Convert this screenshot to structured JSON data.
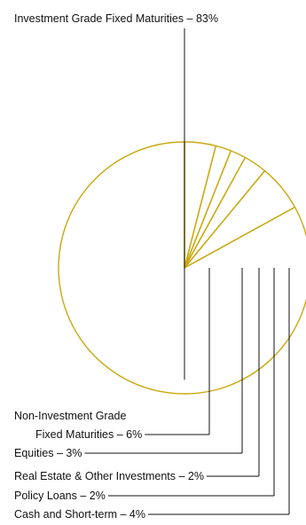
{
  "chart_data": {
    "type": "pie",
    "slices": [
      {
        "label": "Investment Grade Fixed Maturities",
        "value_label": "83%",
        "value": 83
      },
      {
        "label_lines": [
          "Non-Investment Grade",
          "Fixed Maturities"
        ],
        "value_label": "6%",
        "value": 6
      },
      {
        "label": "Equities",
        "value_label": "3%",
        "value": 3
      },
      {
        "label": "Real Estate & Other Investments",
        "value_label": "2%",
        "value": 2
      },
      {
        "label": "Policy Loans",
        "value_label": "2%",
        "value": 2
      },
      {
        "label": "Cash and Short-term",
        "value_label": "4%",
        "value": 4
      }
    ],
    "separator": " – ",
    "colors": {
      "slice_stroke": "#C9A80F",
      "leader_line": "#111111"
    }
  }
}
